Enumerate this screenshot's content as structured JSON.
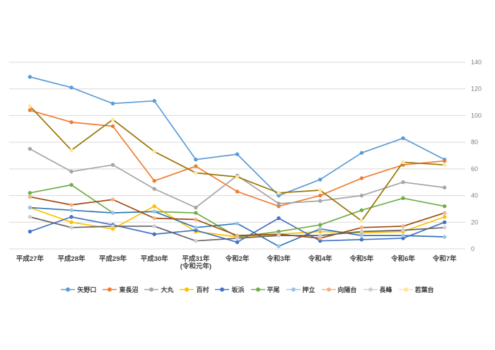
{
  "chart_data": {
    "type": "line",
    "title": "",
    "grid": true,
    "legend_position": "bottom",
    "y_axis": {
      "position": "right",
      "min": 0,
      "max": 140,
      "step": 20,
      "ticks": [
        0,
        20,
        40,
        60,
        80,
        100,
        120,
        140
      ]
    },
    "categories": [
      "平成27年",
      "平成28年",
      "平成29年",
      "平成30年",
      "平成31年\n(令和元年)",
      "令和2年",
      "令和3年",
      "令和4年",
      "令和5年",
      "令和6年",
      "令和7年"
    ],
    "series": [
      {
        "id": "yanokuchi",
        "name": "矢野口",
        "line": "#5B9BD5",
        "marker": "#5B9BD5",
        "legend": "#5B9BD5",
        "values": [
          129,
          121,
          109,
          111,
          67,
          71,
          40,
          52,
          72,
          83,
          67
        ]
      },
      {
        "id": "higashinaganuma",
        "name": "東長沼",
        "line": "#ED7D31",
        "marker": "#ED7D31",
        "legend": "#ED7D31",
        "values": [
          104,
          95,
          92,
          51,
          62,
          43,
          32,
          40,
          53,
          63,
          66
        ]
      },
      {
        "id": "omaru",
        "name": "大丸",
        "line": "#A5A5A5",
        "marker": "#A5A5A5",
        "legend": "#A5A5A5",
        "values": [
          75,
          58,
          63,
          45,
          31,
          55,
          34,
          36,
          40,
          50,
          46
        ]
      },
      {
        "id": "momura",
        "name": "百村",
        "line": "#FFC000",
        "marker": "#FFC000",
        "legend": "#FFC000",
        "values": [
          31,
          20,
          15,
          32,
          13,
          9,
          11,
          13,
          12,
          13,
          24
        ]
      },
      {
        "id": "sakahama",
        "name": "坂浜",
        "line": "#4472C4",
        "marker": "#4472C4",
        "legend": "#4472C4",
        "values": [
          13,
          24,
          18,
          11,
          14,
          5,
          23,
          6,
          7,
          8,
          20
        ]
      },
      {
        "id": "hirao",
        "name": "平尾",
        "line": "#70AD47",
        "marker": "#70AD47",
        "legend": "#70AD47",
        "values": [
          42,
          48,
          27,
          28,
          27,
          9,
          13,
          18,
          29,
          38,
          32
        ]
      },
      {
        "id": "oshitate",
        "name": "押立",
        "line": "#2E75B6",
        "marker": "#9DC3E6",
        "legend": "#9DC3E6",
        "values": [
          31,
          29,
          27,
          28,
          16,
          19,
          2,
          15,
          10,
          10,
          9
        ]
      },
      {
        "id": "koyodai",
        "name": "向陽台",
        "line": "#9E480E",
        "marker": "#F4B183",
        "legend": "#F4B183",
        "values": [
          39,
          33,
          37,
          23,
          22,
          10,
          11,
          8,
          16,
          17,
          27
        ]
      },
      {
        "id": "nagamine",
        "name": "長峰",
        "line": "#636363",
        "marker": "#CFCFCF",
        "legend": "#CFCFCF",
        "values": [
          24,
          16,
          17,
          17,
          6,
          8,
          10,
          10,
          13,
          14,
          16
        ]
      },
      {
        "id": "wakabadai",
        "name": "若葉台",
        "line": "#997300",
        "marker": "#FFE699",
        "legend": "#FFE699",
        "values": [
          107,
          74,
          97,
          73,
          57,
          54,
          42,
          44,
          21,
          65,
          63
        ]
      }
    ]
  }
}
